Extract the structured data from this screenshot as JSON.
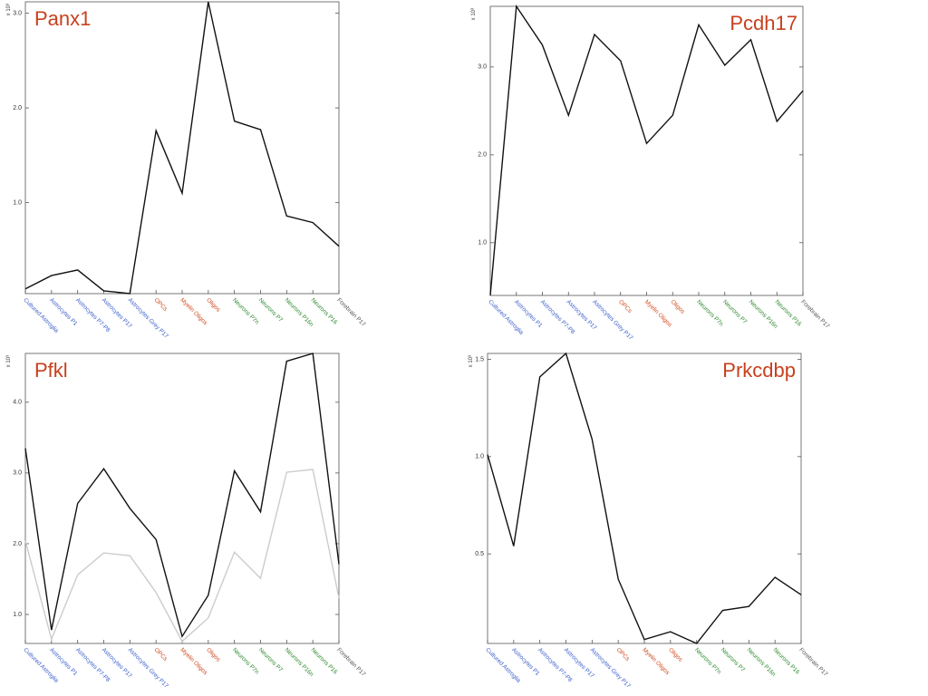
{
  "chart_data": [
    {
      "type": "line",
      "title": "Panx1",
      "title_position": "top-left",
      "title_color": "#c8401e",
      "y_label": "x 10³",
      "categories": [
        "Cultured Astroglia",
        "Astrocytes P1",
        "Astrocytes P7-P8",
        "Astrocytes P17",
        "Astrocytes Grey P17",
        "OPCs",
        "Myelin Oligos",
        "Oligos",
        "Neurons P7n",
        "Neurons P7",
        "Neurons P16n",
        "Neurons P16",
        "Forebrain P17"
      ],
      "category_colors": [
        "#3a5fcd",
        "#3a5fcd",
        "#3a5fcd",
        "#3a5fcd",
        "#3a5fcd",
        "#d04a1e",
        "#d04a1e",
        "#d04a1e",
        "#2e8b2e",
        "#2e8b2e",
        "#2e8b2e",
        "#2e8b2e",
        "#555555"
      ],
      "values": [
        0.09,
        0.23,
        0.29,
        0.07,
        0.04,
        1.76,
        1.1,
        3.12,
        1.86,
        1.77,
        0.86,
        0.79,
        0.54
      ],
      "color": "#111111",
      "ylim": [
        0.04,
        3.12
      ],
      "yticks": [
        {
          "value": 1,
          "label": "1.0"
        },
        {
          "value": 2,
          "label": "2.0"
        },
        {
          "value": 3,
          "label": "3.0"
        }
      ]
    },
    {
      "type": "line",
      "title": "Pcdh17",
      "title_position": "top-right",
      "title_color": "#c8401e",
      "y_label": "x 10³",
      "categories": [
        "Cultured Astroglia",
        "Astrocytes P1",
        "Astrocytes P7-P8",
        "Astrocytes P17",
        "Astrocytes Grey P17",
        "OPCs",
        "Myelin Oligos",
        "Oligos",
        "Neurons P7n",
        "Neurons P7",
        "Neurons P16n",
        "Neurons P16",
        "Forebrain P17"
      ],
      "category_colors": [
        "#3a5fcd",
        "#3a5fcd",
        "#3a5fcd",
        "#3a5fcd",
        "#3a5fcd",
        "#d04a1e",
        "#d04a1e",
        "#d04a1e",
        "#2e8b2e",
        "#2e8b2e",
        "#2e8b2e",
        "#2e8b2e",
        "#555555"
      ],
      "values": [
        0.4,
        3.69,
        3.25,
        2.45,
        3.37,
        3.07,
        2.13,
        2.45,
        3.48,
        3.02,
        3.31,
        2.38,
        2.73
      ],
      "color": "#111111",
      "ylim": [
        0.4,
        3.69
      ],
      "yticks": [
        {
          "value": 1,
          "label": "1.0"
        },
        {
          "value": 2,
          "label": "2.0"
        },
        {
          "value": 3,
          "label": "3.0"
        }
      ]
    },
    {
      "type": "line",
      "title": "Pfkl",
      "title_position": "top-left",
      "title_color": "#c8401e",
      "y_label": "x 10³",
      "categories": [
        "Cultured Astroglia",
        "Astrocytes P1",
        "Astrocytes P7-P8",
        "Astrocytes P17",
        "Astrocytes Grey P17",
        "OPCs",
        "Myelin Oligos",
        "Oligos",
        "Neurons P7n",
        "Neurons P7",
        "Neurons P16n",
        "Neurons P16",
        "Forebrain P17"
      ],
      "category_colors": [
        "#3a5fcd",
        "#3a5fcd",
        "#3a5fcd",
        "#3a5fcd",
        "#3a5fcd",
        "#d04a1e",
        "#d04a1e",
        "#d04a1e",
        "#2e8b2e",
        "#2e8b2e",
        "#2e8b2e",
        "#2e8b2e",
        "#555555"
      ],
      "series": [
        {
          "color": "#111111",
          "values": [
            3.35,
            0.78,
            2.57,
            3.06,
            2.5,
            2.06,
            0.69,
            1.27,
            3.03,
            2.45,
            4.58,
            4.69,
            1.71
          ]
        },
        {
          "color": "#cccccc",
          "values": [
            2.04,
            0.65,
            1.56,
            1.87,
            1.83,
            1.31,
            0.62,
            0.95,
            1.88,
            1.51,
            3.01,
            3.05,
            1.23
          ]
        }
      ],
      "ylim": [
        0.59,
        4.69
      ],
      "yticks": [
        {
          "value": 1,
          "label": "1.0"
        },
        {
          "value": 2,
          "label": "2.0"
        },
        {
          "value": 3,
          "label": "3.0"
        },
        {
          "value": 4,
          "label": "4.0"
        }
      ]
    },
    {
      "type": "line",
      "title": "Prkcdbp",
      "title_position": "top-right",
      "title_color": "#c8401e",
      "y_label": "x 10³",
      "categories": [
        "Cultured Astroglia",
        "Astrocytes P1",
        "Astrocytes P7-P8",
        "Astrocytes P17",
        "Astrocytes Grey P17",
        "OPCs",
        "Myelin Oligos",
        "Oligos",
        "Neurons P7n",
        "Neurons P7",
        "Neurons P16n",
        "Neurons P16",
        "Forebrain P17"
      ],
      "category_colors": [
        "#3a5fcd",
        "#3a5fcd",
        "#3a5fcd",
        "#3a5fcd",
        "#3a5fcd",
        "#d04a1e",
        "#d04a1e",
        "#d04a1e",
        "#2e8b2e",
        "#2e8b2e",
        "#2e8b2e",
        "#2e8b2e",
        "#555555"
      ],
      "values": [
        1.01,
        0.54,
        1.41,
        1.53,
        1.09,
        0.37,
        0.06,
        0.1,
        0.04,
        0.21,
        0.23,
        0.38,
        0.29
      ],
      "color": "#111111",
      "ylim": [
        0.04,
        1.53
      ],
      "yticks": [
        0.5,
        {
          "value": 1,
          "label": "1.0"
        },
        1.5
      ]
    }
  ]
}
